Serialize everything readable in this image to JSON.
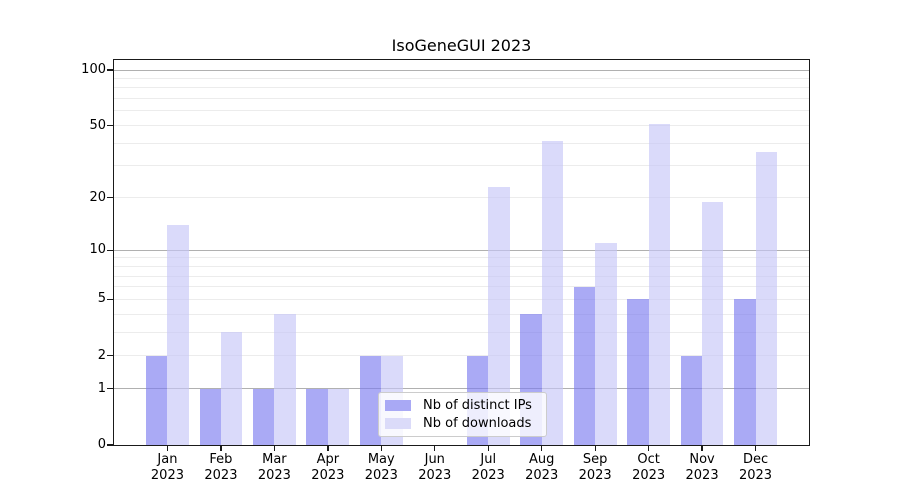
{
  "chart_data": {
    "type": "bar",
    "title": "IsoGeneGUI 2023",
    "categories": [
      "Jan",
      "Feb",
      "Mar",
      "Apr",
      "May",
      "Jun",
      "Jul",
      "Aug",
      "Sep",
      "Oct",
      "Nov",
      "Dec"
    ],
    "category_year": "2023",
    "series": [
      {
        "name": "Nb of distinct IPs",
        "color": "rgba(124,124,240,0.65)",
        "legend_color": "#a9a9f5",
        "values": [
          2,
          1,
          1,
          1,
          2,
          0,
          2,
          4,
          6,
          5,
          2,
          5
        ]
      },
      {
        "name": "Nb of downloads",
        "color": "rgba(198,198,247,0.65)",
        "legend_color": "#dbdbf9",
        "values": [
          14,
          3,
          4,
          1,
          2,
          0,
          23,
          41,
          11,
          51,
          19,
          36
        ]
      }
    ],
    "xlabel": "",
    "ylabel": "",
    "y_axis": {
      "scale": "log1p",
      "tick_values": [
        0,
        1,
        2,
        5,
        10,
        20,
        50,
        100
      ],
      "major_gridlines": [
        1,
        10,
        100
      ],
      "minor_gridlines": [
        2,
        3,
        4,
        5,
        6,
        7,
        8,
        9,
        20,
        30,
        40,
        50,
        60,
        70,
        80,
        90
      ],
      "ylim": [
        0,
        113
      ]
    },
    "grid": true,
    "legend_position": "lower-center"
  },
  "colors": {
    "major_grid": "#b0b0b0",
    "minor_grid": "#ececec",
    "spine": "#1a1a1a",
    "text": "#000000",
    "legend_border": "#cccccc"
  }
}
